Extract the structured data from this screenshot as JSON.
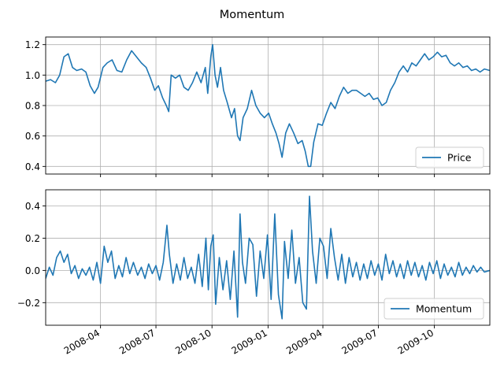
{
  "figure_title": "Momentum",
  "colors": {
    "line": "#1f77b4",
    "grid": "#b0b0b0",
    "axis": "#000000"
  },
  "chart_data": [
    {
      "type": "line",
      "title": "",
      "xlabel": "",
      "ylabel": "",
      "x_range": [
        "2008-01-02",
        "2009-12-31"
      ],
      "ylim": [
        0.35,
        1.25
      ],
      "yticks": [
        0.4,
        0.6,
        0.8,
        1.0,
        1.2
      ],
      "ytick_labels": [
        "0.4",
        "0.6",
        "0.8",
        "1.0",
        "1.2"
      ],
      "xticks": [
        "2008-04-01",
        "2008-07-01",
        "2008-10-01",
        "2009-01-01",
        "2009-04-01",
        "2009-07-01",
        "2009-10-01"
      ],
      "xtick_labels_visible": false,
      "grid": true,
      "legend": {
        "position": "lower-right",
        "entries": [
          "Price"
        ]
      },
      "series": [
        {
          "name": "Price",
          "points": [
            [
              "2008-01-02",
              0.96
            ],
            [
              "2008-01-10",
              0.97
            ],
            [
              "2008-01-18",
              0.95
            ],
            [
              "2008-01-25",
              1.0
            ],
            [
              "2008-02-01",
              1.12
            ],
            [
              "2008-02-08",
              1.14
            ],
            [
              "2008-02-15",
              1.05
            ],
            [
              "2008-02-22",
              1.03
            ],
            [
              "2008-03-01",
              1.04
            ],
            [
              "2008-03-08",
              1.02
            ],
            [
              "2008-03-15",
              0.93
            ],
            [
              "2008-03-22",
              0.88
            ],
            [
              "2008-03-28",
              0.92
            ],
            [
              "2008-04-05",
              1.05
            ],
            [
              "2008-04-12",
              1.08
            ],
            [
              "2008-04-20",
              1.1
            ],
            [
              "2008-04-28",
              1.03
            ],
            [
              "2008-05-06",
              1.02
            ],
            [
              "2008-05-14",
              1.1
            ],
            [
              "2008-05-22",
              1.16
            ],
            [
              "2008-05-30",
              1.12
            ],
            [
              "2008-06-07",
              1.08
            ],
            [
              "2008-06-15",
              1.05
            ],
            [
              "2008-06-22",
              0.98
            ],
            [
              "2008-06-29",
              0.9
            ],
            [
              "2008-07-05",
              0.93
            ],
            [
              "2008-07-12",
              0.85
            ],
            [
              "2008-07-18",
              0.8
            ],
            [
              "2008-07-22",
              0.76
            ],
            [
              "2008-07-26",
              1.0
            ],
            [
              "2008-08-02",
              0.98
            ],
            [
              "2008-08-09",
              1.0
            ],
            [
              "2008-08-16",
              0.92
            ],
            [
              "2008-08-23",
              0.9
            ],
            [
              "2008-08-30",
              0.95
            ],
            [
              "2008-09-06",
              1.02
            ],
            [
              "2008-09-13",
              0.95
            ],
            [
              "2008-09-20",
              1.05
            ],
            [
              "2008-09-24",
              0.88
            ],
            [
              "2008-09-29",
              1.12
            ],
            [
              "2008-10-02",
              1.2
            ],
            [
              "2008-10-06",
              1.0
            ],
            [
              "2008-10-10",
              0.92
            ],
            [
              "2008-10-15",
              1.05
            ],
            [
              "2008-10-20",
              0.9
            ],
            [
              "2008-10-26",
              0.82
            ],
            [
              "2008-11-02",
              0.72
            ],
            [
              "2008-11-07",
              0.78
            ],
            [
              "2008-11-12",
              0.6
            ],
            [
              "2008-11-16",
              0.57
            ],
            [
              "2008-11-21",
              0.72
            ],
            [
              "2008-11-28",
              0.78
            ],
            [
              "2008-12-05",
              0.9
            ],
            [
              "2008-12-12",
              0.8
            ],
            [
              "2008-12-19",
              0.75
            ],
            [
              "2008-12-26",
              0.72
            ],
            [
              "2009-01-02",
              0.75
            ],
            [
              "2009-01-08",
              0.68
            ],
            [
              "2009-01-14",
              0.62
            ],
            [
              "2009-01-19",
              0.55
            ],
            [
              "2009-01-24",
              0.46
            ],
            [
              "2009-01-30",
              0.62
            ],
            [
              "2009-02-05",
              0.68
            ],
            [
              "2009-02-12",
              0.62
            ],
            [
              "2009-02-19",
              0.55
            ],
            [
              "2009-02-26",
              0.57
            ],
            [
              "2009-03-03",
              0.5
            ],
            [
              "2009-03-08",
              0.4
            ],
            [
              "2009-03-12",
              0.4
            ],
            [
              "2009-03-17",
              0.56
            ],
            [
              "2009-03-24",
              0.68
            ],
            [
              "2009-03-31",
              0.67
            ],
            [
              "2009-04-07",
              0.75
            ],
            [
              "2009-04-14",
              0.82
            ],
            [
              "2009-04-21",
              0.78
            ],
            [
              "2009-04-28",
              0.86
            ],
            [
              "2009-05-05",
              0.92
            ],
            [
              "2009-05-12",
              0.88
            ],
            [
              "2009-05-19",
              0.9
            ],
            [
              "2009-05-26",
              0.9
            ],
            [
              "2009-06-02",
              0.88
            ],
            [
              "2009-06-09",
              0.86
            ],
            [
              "2009-06-16",
              0.88
            ],
            [
              "2009-06-23",
              0.84
            ],
            [
              "2009-06-30",
              0.85
            ],
            [
              "2009-07-07",
              0.8
            ],
            [
              "2009-07-14",
              0.82
            ],
            [
              "2009-07-21",
              0.9
            ],
            [
              "2009-07-28",
              0.95
            ],
            [
              "2009-08-04",
              1.02
            ],
            [
              "2009-08-11",
              1.06
            ],
            [
              "2009-08-18",
              1.02
            ],
            [
              "2009-08-25",
              1.08
            ],
            [
              "2009-09-01",
              1.06
            ],
            [
              "2009-09-08",
              1.1
            ],
            [
              "2009-09-15",
              1.14
            ],
            [
              "2009-09-22",
              1.1
            ],
            [
              "2009-09-29",
              1.12
            ],
            [
              "2009-10-06",
              1.15
            ],
            [
              "2009-10-13",
              1.12
            ],
            [
              "2009-10-20",
              1.13
            ],
            [
              "2009-10-27",
              1.08
            ],
            [
              "2009-11-03",
              1.06
            ],
            [
              "2009-11-10",
              1.08
            ],
            [
              "2009-11-17",
              1.05
            ],
            [
              "2009-11-24",
              1.06
            ],
            [
              "2009-12-01",
              1.03
            ],
            [
              "2009-12-08",
              1.04
            ],
            [
              "2009-12-15",
              1.02
            ],
            [
              "2009-12-22",
              1.04
            ],
            [
              "2009-12-31",
              1.03
            ]
          ]
        }
      ]
    },
    {
      "type": "line",
      "title": "",
      "xlabel": "",
      "ylabel": "",
      "x_range": [
        "2008-01-02",
        "2009-12-31"
      ],
      "ylim": [
        -0.34,
        0.5
      ],
      "yticks": [
        -0.2,
        0.0,
        0.2,
        0.4
      ],
      "ytick_labels": [
        "−0.2",
        "0.0",
        "0.2",
        "0.4"
      ],
      "xticks": [
        "2008-04-01",
        "2008-07-01",
        "2008-10-01",
        "2009-01-01",
        "2009-04-01",
        "2009-07-01",
        "2009-10-01"
      ],
      "xtick_labels": [
        "2008-04",
        "2008-07",
        "2008-10",
        "2009-01",
        "2009-04",
        "2009-07",
        "2009-10"
      ],
      "grid": true,
      "legend": {
        "position": "lower-right",
        "entries": [
          "Momentum"
        ]
      },
      "series": [
        {
          "name": "Momentum",
          "points": [
            [
              "2008-01-02",
              -0.05
            ],
            [
              "2008-01-08",
              0.02
            ],
            [
              "2008-01-14",
              -0.03
            ],
            [
              "2008-01-20",
              0.08
            ],
            [
              "2008-01-26",
              0.12
            ],
            [
              "2008-02-01",
              0.05
            ],
            [
              "2008-02-07",
              0.1
            ],
            [
              "2008-02-13",
              -0.02
            ],
            [
              "2008-02-19",
              0.03
            ],
            [
              "2008-02-25",
              -0.05
            ],
            [
              "2008-03-02",
              0.01
            ],
            [
              "2008-03-08",
              -0.03
            ],
            [
              "2008-03-14",
              0.02
            ],
            [
              "2008-03-20",
              -0.06
            ],
            [
              "2008-03-26",
              0.05
            ],
            [
              "2008-04-01",
              -0.08
            ],
            [
              "2008-04-07",
              0.15
            ],
            [
              "2008-04-13",
              0.05
            ],
            [
              "2008-04-19",
              0.12
            ],
            [
              "2008-04-25",
              -0.05
            ],
            [
              "2008-05-01",
              0.03
            ],
            [
              "2008-05-07",
              -0.04
            ],
            [
              "2008-05-13",
              0.08
            ],
            [
              "2008-05-19",
              -0.02
            ],
            [
              "2008-05-25",
              0.05
            ],
            [
              "2008-06-01",
              -0.03
            ],
            [
              "2008-06-07",
              0.02
            ],
            [
              "2008-06-13",
              -0.05
            ],
            [
              "2008-06-19",
              0.04
            ],
            [
              "2008-06-25",
              -0.02
            ],
            [
              "2008-07-01",
              0.03
            ],
            [
              "2008-07-07",
              -0.06
            ],
            [
              "2008-07-13",
              0.05
            ],
            [
              "2008-07-19",
              0.28
            ],
            [
              "2008-07-23",
              0.1
            ],
            [
              "2008-07-29",
              -0.08
            ],
            [
              "2008-08-04",
              0.04
            ],
            [
              "2008-08-10",
              -0.06
            ],
            [
              "2008-08-16",
              0.08
            ],
            [
              "2008-08-22",
              -0.05
            ],
            [
              "2008-08-28",
              0.02
            ],
            [
              "2008-09-03",
              -0.08
            ],
            [
              "2008-09-09",
              0.1
            ],
            [
              "2008-09-15",
              -0.1
            ],
            [
              "2008-09-21",
              0.2
            ],
            [
              "2008-09-25",
              -0.12
            ],
            [
              "2008-09-29",
              0.15
            ],
            [
              "2008-10-03",
              0.22
            ],
            [
              "2008-10-07",
              -0.21
            ],
            [
              "2008-10-13",
              0.08
            ],
            [
              "2008-10-19",
              -0.12
            ],
            [
              "2008-10-25",
              0.06
            ],
            [
              "2008-10-31",
              -0.18
            ],
            [
              "2008-11-06",
              0.12
            ],
            [
              "2008-11-12",
              -0.29
            ],
            [
              "2008-11-16",
              0.35
            ],
            [
              "2008-11-20",
              0.05
            ],
            [
              "2008-11-25",
              -0.08
            ],
            [
              "2008-12-01",
              0.2
            ],
            [
              "2008-12-07",
              0.16
            ],
            [
              "2008-12-13",
              -0.16
            ],
            [
              "2008-12-19",
              0.12
            ],
            [
              "2008-12-25",
              -0.05
            ],
            [
              "2008-12-31",
              0.22
            ],
            [
              "2009-01-06",
              -0.18
            ],
            [
              "2009-01-12",
              0.35
            ],
            [
              "2009-01-18",
              -0.15
            ],
            [
              "2009-01-24",
              -0.3
            ],
            [
              "2009-01-28",
              0.18
            ],
            [
              "2009-02-03",
              -0.05
            ],
            [
              "2009-02-09",
              0.25
            ],
            [
              "2009-02-15",
              -0.08
            ],
            [
              "2009-02-21",
              0.08
            ],
            [
              "2009-02-27",
              -0.2
            ],
            [
              "2009-03-05",
              -0.24
            ],
            [
              "2009-03-10",
              0.46
            ],
            [
              "2009-03-15",
              0.12
            ],
            [
              "2009-03-21",
              -0.08
            ],
            [
              "2009-03-27",
              0.2
            ],
            [
              "2009-04-02",
              0.15
            ],
            [
              "2009-04-08",
              -0.05
            ],
            [
              "2009-04-14",
              0.26
            ],
            [
              "2009-04-20",
              0.08
            ],
            [
              "2009-04-26",
              -0.06
            ],
            [
              "2009-05-02",
              0.1
            ],
            [
              "2009-05-08",
              -0.08
            ],
            [
              "2009-05-14",
              0.08
            ],
            [
              "2009-05-20",
              -0.04
            ],
            [
              "2009-05-26",
              0.05
            ],
            [
              "2009-06-01",
              -0.06
            ],
            [
              "2009-06-07",
              0.04
            ],
            [
              "2009-06-13",
              -0.05
            ],
            [
              "2009-06-19",
              0.06
            ],
            [
              "2009-06-25",
              -0.03
            ],
            [
              "2009-07-01",
              0.04
            ],
            [
              "2009-07-07",
              -0.06
            ],
            [
              "2009-07-13",
              0.1
            ],
            [
              "2009-07-19",
              -0.02
            ],
            [
              "2009-07-25",
              0.06
            ],
            [
              "2009-07-31",
              -0.04
            ],
            [
              "2009-08-06",
              0.04
            ],
            [
              "2009-08-12",
              -0.05
            ],
            [
              "2009-08-18",
              0.06
            ],
            [
              "2009-08-24",
              -0.03
            ],
            [
              "2009-08-30",
              0.05
            ],
            [
              "2009-09-05",
              -0.04
            ],
            [
              "2009-09-11",
              0.03
            ],
            [
              "2009-09-17",
              -0.06
            ],
            [
              "2009-09-23",
              0.05
            ],
            [
              "2009-09-29",
              -0.02
            ],
            [
              "2009-10-05",
              0.06
            ],
            [
              "2009-10-11",
              -0.05
            ],
            [
              "2009-10-17",
              0.04
            ],
            [
              "2009-10-23",
              -0.03
            ],
            [
              "2009-10-29",
              0.02
            ],
            [
              "2009-11-04",
              -0.04
            ],
            [
              "2009-11-10",
              0.05
            ],
            [
              "2009-11-16",
              -0.03
            ],
            [
              "2009-11-22",
              0.02
            ],
            [
              "2009-11-28",
              -0.02
            ],
            [
              "2009-12-04",
              0.03
            ],
            [
              "2009-12-10",
              -0.01
            ],
            [
              "2009-12-16",
              0.02
            ],
            [
              "2009-12-22",
              -0.01
            ],
            [
              "2009-12-31",
              0.0
            ]
          ]
        }
      ]
    }
  ]
}
